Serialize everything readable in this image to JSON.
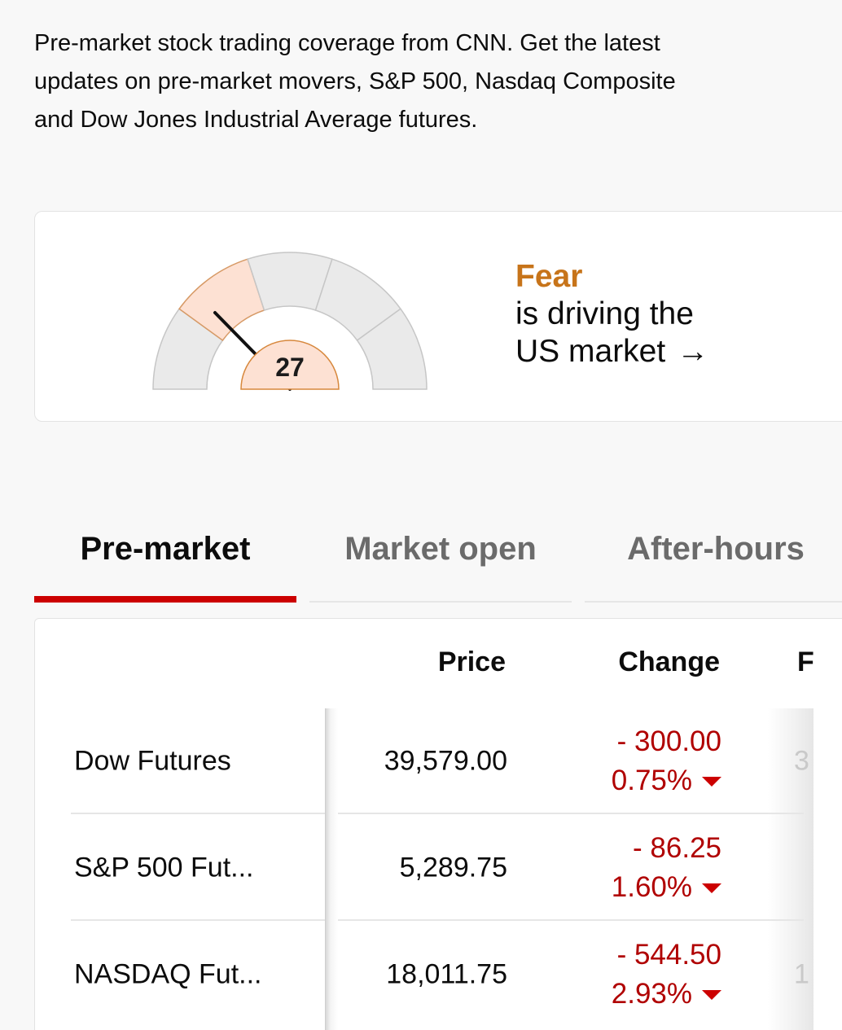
{
  "intro": {
    "text": "Pre-market stock trading coverage from CNN. Get the latest updates on pre-market movers, S&P 500, Nasdaq Composite and Dow Jones Industrial Average futures."
  },
  "fear_greed": {
    "value": "27",
    "value_numeric": 27,
    "sentiment_word": "Fear",
    "line2": "is driving the",
    "line3": "US market",
    "arrow": "→",
    "colors": {
      "accent": "#c7741a",
      "active_segment": "#fde1d3",
      "segment": "#eaeaea"
    }
  },
  "tabs": [
    {
      "label": "Pre-market",
      "active": true
    },
    {
      "label": "Market open",
      "active": false
    },
    {
      "label": "After-hours",
      "active": false
    }
  ],
  "table": {
    "headers": {
      "price": "Price",
      "change": "Change",
      "next_partial": "F"
    },
    "rows": [
      {
        "name": "Dow Futures",
        "price": "39,579.00",
        "change": "- 300.00",
        "percent": "0.75%",
        "direction": "down",
        "peek": "3"
      },
      {
        "name": "S&P 500 Fut...",
        "price": "5,289.75",
        "change": "- 86.25",
        "percent": "1.60%",
        "direction": "down",
        "peek": ""
      },
      {
        "name": "NASDAQ Fut...",
        "price": "18,011.75",
        "change": "- 544.50",
        "percent": "2.93%",
        "direction": "down",
        "peek": "1"
      }
    ],
    "colors": {
      "negative": "#b00000"
    }
  },
  "colors": {
    "tab_active_underline": "#cc0000",
    "background": "#f8f8f8"
  }
}
